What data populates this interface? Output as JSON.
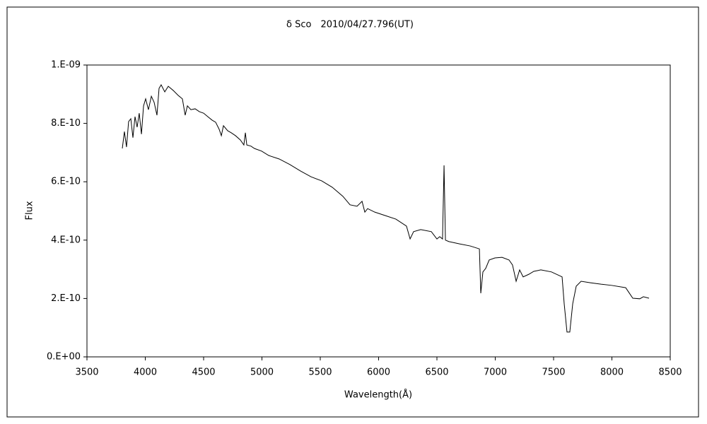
{
  "chart_data": {
    "type": "line",
    "title": "δ Sco　2010/04/27.796(UT)",
    "x_label": "Wavelength(Å)",
    "y_label": "Flux",
    "color": "#000000",
    "grid": false,
    "xlim": [
      3500,
      8500
    ],
    "xticks": [
      3500,
      4000,
      4500,
      5000,
      5500,
      6000,
      6500,
      7000,
      7500,
      8000,
      8500
    ],
    "ylim": [
      0,
      1e-09
    ],
    "yticks": [
      {
        "value": 0,
        "label": "0.E+00"
      },
      {
        "value": 2e-10,
        "label": "2.E-10"
      },
      {
        "value": 4e-10,
        "label": "4.E-10"
      },
      {
        "value": 6e-10,
        "label": "6.E-10"
      },
      {
        "value": 8e-10,
        "label": "8.E-10"
      },
      {
        "value": 1e-09,
        "label": "1.E-09"
      }
    ],
    "x": [
      3803,
      3821,
      3839,
      3857,
      3876,
      3894,
      3912,
      3930,
      3948,
      3967,
      3985,
      4003,
      4027,
      4052,
      4076,
      4100,
      4118,
      4136,
      4167,
      4197,
      4239,
      4282,
      4318,
      4342,
      4361,
      4391,
      4427,
      4464,
      4500,
      4536,
      4573,
      4603,
      4633,
      4652,
      4670,
      4706,
      4736,
      4773,
      4815,
      4845,
      4858,
      4870,
      4906,
      4936,
      4997,
      5058,
      5148,
      5239,
      5330,
      5421,
      5512,
      5603,
      5694,
      5755,
      5815,
      5858,
      5882,
      5906,
      5967,
      6058,
      6148,
      6239,
      6270,
      6300,
      6361,
      6452,
      6500,
      6524,
      6548,
      6561,
      6573,
      6603,
      6694,
      6785,
      6864,
      6876,
      6894,
      6918,
      6948,
      6997,
      7058,
      7118,
      7148,
      7179,
      7209,
      7239,
      7288,
      7330,
      7391,
      7482,
      7573,
      7591,
      7615,
      7639,
      7664,
      7694,
      7736,
      7815,
      7906,
      7997,
      8118,
      8179,
      8239,
      8270,
      8318
    ],
    "values": [
      7.14e-10,
      7.72e-10,
      7.19e-10,
      8.06e-10,
      8.16e-10,
      7.51e-10,
      8.23e-10,
      7.87e-10,
      8.35e-10,
      7.63e-10,
      8.6e-10,
      8.84e-10,
      8.47e-10,
      8.93e-10,
      8.72e-10,
      8.28e-10,
      9.2e-10,
      9.32e-10,
      9.08e-10,
      9.27e-10,
      9.13e-10,
      8.96e-10,
      8.84e-10,
      8.28e-10,
      8.6e-10,
      8.47e-10,
      8.5e-10,
      8.4e-10,
      8.35e-10,
      8.23e-10,
      8.11e-10,
      8.04e-10,
      7.8e-10,
      7.58e-10,
      7.92e-10,
      7.75e-10,
      7.68e-10,
      7.58e-10,
      7.43e-10,
      7.26e-10,
      7.68e-10,
      7.26e-10,
      7.22e-10,
      7.14e-10,
      7.05e-10,
      6.9e-10,
      6.78e-10,
      6.59e-10,
      6.37e-10,
      6.17e-10,
      6.03e-10,
      5.81e-10,
      5.5e-10,
      5.21e-10,
      5.16e-10,
      5.33e-10,
      4.96e-10,
      5.08e-10,
      4.96e-10,
      4.84e-10,
      4.72e-10,
      4.48e-10,
      4.04e-10,
      4.29e-10,
      4.36e-10,
      4.29e-10,
      4.04e-10,
      4.12e-10,
      4.04e-10,
      6.56e-10,
      4e-10,
      3.95e-10,
      3.87e-10,
      3.8e-10,
      3.7e-10,
      2.18e-10,
      2.91e-10,
      3.03e-10,
      3.32e-10,
      3.39e-10,
      3.41e-10,
      3.32e-10,
      3.15e-10,
      2.59e-10,
      2.98e-10,
      2.74e-10,
      2.83e-10,
      2.93e-10,
      2.98e-10,
      2.91e-10,
      2.74e-10,
      1.82e-10,
      8.5e-11,
      8.5e-11,
      1.82e-10,
      2.42e-10,
      2.59e-10,
      2.54e-10,
      2.49e-10,
      2.45e-10,
      2.37e-10,
      2.01e-10,
      1.99e-10,
      2.06e-10,
      2.01e-10
    ]
  }
}
